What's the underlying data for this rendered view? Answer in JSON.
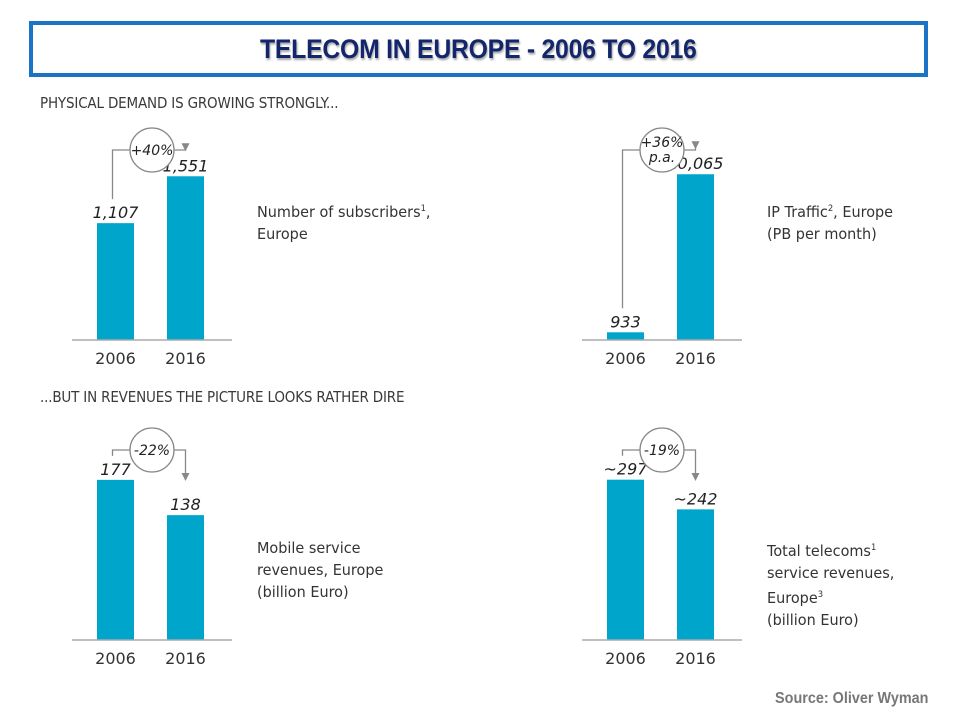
{
  "title": "TELECOM IN EUROPE - 2006 TO 2016",
  "sections": [
    "PHYSICAL DEMAND IS GROWING STRONGLY...",
    "...BUT IN REVENUES THE PICTURE LOOKS RATHER DIRE"
  ],
  "source": "Source:  Oliver Wyman",
  "colors": {
    "bar": "#00a5cc",
    "title_border": "#1a73c4",
    "title_text": "#13266b",
    "axis": "#aaaaaa",
    "arrow": "#888888"
  },
  "chart_data": [
    {
      "type": "bar",
      "title": "Number of subscribers, Europe",
      "desc_lines": [
        "Number of subscribers",
        "Europe"
      ],
      "footnote": "1",
      "categories": [
        "2006",
        "2016"
      ],
      "values": [
        1107,
        1551
      ],
      "value_labels": [
        "1,107",
        "1,551"
      ],
      "change_label": [
        "+40%"
      ],
      "ylim": [
        0,
        1800
      ]
    },
    {
      "type": "bar",
      "title": "IP Traffic, Europe (PB per month)",
      "desc_lines": [
        "IP Traffic",
        "(PB per month)"
      ],
      "footnote": "2",
      "categories": [
        "2006",
        "2016"
      ],
      "values": [
        933,
        20065
      ],
      "value_labels": [
        "933",
        "20,065"
      ],
      "change_label": [
        "+36%",
        "p.a."
      ],
      "ylim": [
        0,
        23000
      ]
    },
    {
      "type": "bar",
      "title": "Mobile service revenues, Europe (billion Euro)",
      "desc_lines": [
        "Mobile service",
        "revenues, Europe",
        "(billion Euro)"
      ],
      "categories": [
        "2006",
        "2016"
      ],
      "values": [
        177,
        138
      ],
      "value_labels": [
        "177",
        "138"
      ],
      "change_label": [
        "-22%"
      ],
      "ylim": [
        0,
        210
      ]
    },
    {
      "type": "bar",
      "title": "Total telecoms service revenues, Europe (billion Euro)",
      "desc_lines": [
        "Total telecoms",
        "service revenues,",
        "Europe",
        "(billion Euro)"
      ],
      "categories": [
        "2006",
        "2016"
      ],
      "values": [
        297,
        242
      ],
      "value_labels": [
        "~297",
        "~242"
      ],
      "change_label": [
        "-19%"
      ],
      "ylim": [
        0,
        352
      ]
    }
  ]
}
